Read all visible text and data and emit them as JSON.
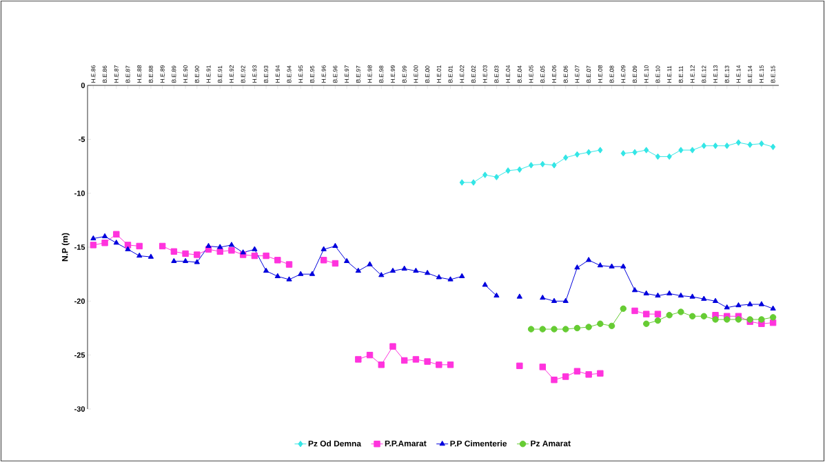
{
  "chart_data": {
    "type": "line",
    "ylabel": "N.P (m)",
    "categories": [
      "H.E.86",
      "B.E.86",
      "H.E.87",
      "B.E.87",
      "H.E.88",
      "B.E.88",
      "H.E.89",
      "B.E.89",
      "H.E.90",
      "B.E.90",
      "H.E.91",
      "B.E.91",
      "H.E.92",
      "B.E.92",
      "H.E.93",
      "B.E.93",
      "H.E.94",
      "B.E.94",
      "H.E.95",
      "B.E.95",
      "H.E.96",
      "B.E.96",
      "H.E.97",
      "B.E.97",
      "H.E.98",
      "B.E.98",
      "H.E.99",
      "B.E.99",
      "H.E.00",
      "B.E.00",
      "H.E.01",
      "B.E.01",
      "H.E.02",
      "B.E.02",
      "H.E.03",
      "B.E.03",
      "H.E.04",
      "B.E.04",
      "H.E.05",
      "B.E.05",
      "H.E.06",
      "B.E.06",
      "H.E.07",
      "B.E.07",
      "H.E.08",
      "B.E.08",
      "H.E.09",
      "B.E.09",
      "H.E.10",
      "B.E.10",
      "H.E.11",
      "B.E.11",
      "H.E.12",
      "B.E.12",
      "H.E.13",
      "B.E.13",
      "H.E.14",
      "B.E.14",
      "H.E.15",
      "B.E.15"
    ],
    "series": [
      {
        "name": "Pz Od Demna",
        "color": "#33e6e6",
        "marker": "diamond",
        "values": [
          null,
          null,
          null,
          null,
          null,
          null,
          null,
          null,
          null,
          null,
          null,
          null,
          null,
          null,
          null,
          null,
          null,
          null,
          null,
          null,
          null,
          null,
          null,
          null,
          null,
          null,
          null,
          null,
          null,
          null,
          null,
          null,
          -9.0,
          -9.0,
          -8.3,
          -8.5,
          -7.9,
          -7.8,
          -7.4,
          -7.3,
          -7.4,
          -6.7,
          -6.4,
          -6.2,
          -6.0,
          null,
          -6.3,
          -6.2,
          -6.0,
          -6.6,
          -6.6,
          -6.0,
          -6.0,
          -5.6,
          -5.6,
          -5.6,
          -5.3,
          -5.5,
          -5.4,
          -5.7
        ]
      },
      {
        "name": "P.P.Amarat",
        "color": "#ff33dd",
        "marker": "square",
        "values": [
          -14.8,
          -14.6,
          -13.8,
          -14.8,
          -14.9,
          null,
          -14.9,
          -15.4,
          -15.6,
          -15.7,
          -15.2,
          -15.4,
          -15.3,
          -15.7,
          -15.8,
          -15.8,
          -16.2,
          -16.6,
          null,
          null,
          -16.2,
          -16.5,
          null,
          -25.4,
          -25.0,
          -25.9,
          -24.2,
          -25.5,
          -25.4,
          -25.6,
          -25.9,
          -25.9,
          null,
          null,
          null,
          null,
          null,
          -26.0,
          null,
          -26.1,
          -27.3,
          -27.0,
          -26.5,
          -26.8,
          -26.7,
          null,
          null,
          -20.9,
          -21.2,
          -21.2,
          null,
          null,
          null,
          null,
          -21.3,
          -21.4,
          -21.4,
          -21.9,
          -22.1,
          -22.0
        ]
      },
      {
        "name": "P.P Cimenterie",
        "color": "#0000dd",
        "marker": "triangle",
        "values": [
          -14.2,
          -14.0,
          -14.6,
          -15.2,
          -15.8,
          -15.9,
          null,
          -16.3,
          -16.3,
          -16.4,
          -14.9,
          -15.0,
          -14.8,
          -15.5,
          -15.2,
          -17.2,
          -17.7,
          -18.0,
          -17.5,
          -17.5,
          -15.2,
          -14.9,
          -16.3,
          -17.2,
          -16.6,
          -17.6,
          -17.2,
          -17.0,
          -17.2,
          -17.4,
          -17.8,
          -18.0,
          -17.7,
          null,
          -18.5,
          -19.5,
          null,
          -19.6,
          null,
          -19.7,
          -20.0,
          -20.0,
          -16.9,
          -16.2,
          -16.7,
          -16.8,
          -16.8,
          -19.0,
          -19.3,
          -19.5,
          -19.3,
          -19.5,
          -19.6,
          -19.8,
          -20.0,
          -20.6,
          -20.4,
          -20.3,
          -20.3,
          -20.7
        ]
      },
      {
        "name": "Pz Amarat",
        "color": "#66cc33",
        "marker": "circle",
        "values": [
          null,
          null,
          null,
          null,
          null,
          null,
          null,
          null,
          null,
          null,
          null,
          null,
          null,
          null,
          null,
          null,
          null,
          null,
          null,
          null,
          null,
          null,
          null,
          null,
          null,
          null,
          null,
          null,
          null,
          null,
          null,
          null,
          null,
          null,
          null,
          null,
          null,
          null,
          -22.6,
          -22.6,
          -22.6,
          -22.6,
          -22.5,
          -22.4,
          -22.1,
          -22.3,
          -20.7,
          null,
          -22.1,
          -21.8,
          -21.3,
          -21.0,
          -21.4,
          -21.4,
          -21.7,
          -21.7,
          -21.7,
          -21.7,
          -21.7,
          -21.5
        ]
      }
    ],
    "ylim": [
      -30,
      0
    ],
    "yticks": [
      0,
      -5,
      -10,
      -15,
      -20,
      -25,
      -30
    ],
    "legend": "bottom",
    "line_style": "solid"
  }
}
